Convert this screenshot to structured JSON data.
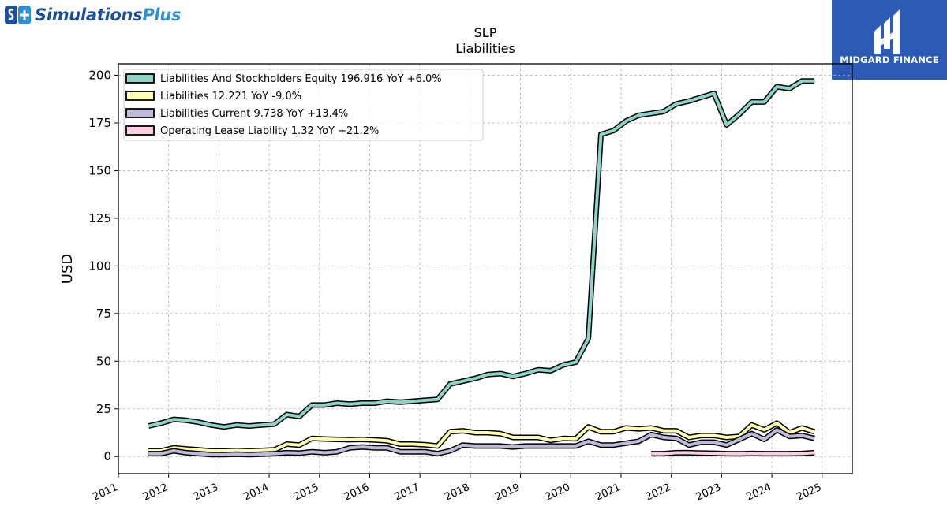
{
  "branding": {
    "logo_text_main": "Simulations",
    "logo_text_accent": "Plus",
    "brand_name": "MIDGARD FINANCE",
    "brand_color": "#2d5ab5"
  },
  "chart_data": {
    "type": "line",
    "title": "SLP",
    "subtitle": "Liabilities",
    "ylabel": "USD",
    "xlabel": "",
    "ylim": [
      -9,
      206
    ],
    "xlim": [
      2011.0,
      2025.6
    ],
    "yticks": [
      0,
      25,
      50,
      75,
      100,
      125,
      150,
      175,
      200
    ],
    "xticks": [
      {
        "pos": 2011.0,
        "label": "2011"
      },
      {
        "pos": 2012.0,
        "label": "2012"
      },
      {
        "pos": 2013.0,
        "label": "2013"
      },
      {
        "pos": 2014.0,
        "label": "2014"
      },
      {
        "pos": 2015.0,
        "label": "2015"
      },
      {
        "pos": 2016.0,
        "label": "2016"
      },
      {
        "pos": 2017.0,
        "label": "2017"
      },
      {
        "pos": 2018.0,
        "label": "2018"
      },
      {
        "pos": 2019.0,
        "label": "2019"
      },
      {
        "pos": 2020.0,
        "label": "2020"
      },
      {
        "pos": 2021.0,
        "label": "2021"
      },
      {
        "pos": 2022.0,
        "label": "2022"
      },
      {
        "pos": 2023.0,
        "label": "2023"
      },
      {
        "pos": 2024.0,
        "label": "2024"
      },
      {
        "pos": 2025.0,
        "label": "2025"
      }
    ],
    "grid": true,
    "legend_position": "top-left",
    "series": [
      {
        "name": "Liabilities And Stockholders Equity  196.916 YoY +6.0%",
        "color": "#8dd3c7",
        "points": [
          [
            2011.6,
            16
          ],
          [
            2011.85,
            17.5
          ],
          [
            2012.1,
            19.5
          ],
          [
            2012.35,
            19
          ],
          [
            2012.6,
            18
          ],
          [
            2012.85,
            16.5
          ],
          [
            2013.1,
            15.5
          ],
          [
            2013.35,
            16.5
          ],
          [
            2013.6,
            16
          ],
          [
            2013.85,
            16.5
          ],
          [
            2014.1,
            17
          ],
          [
            2014.35,
            22
          ],
          [
            2014.6,
            21
          ],
          [
            2014.85,
            27
          ],
          [
            2015.1,
            27
          ],
          [
            2015.35,
            28
          ],
          [
            2015.6,
            27.5
          ],
          [
            2015.85,
            28
          ],
          [
            2016.1,
            28
          ],
          [
            2016.35,
            29
          ],
          [
            2016.6,
            28.5
          ],
          [
            2016.85,
            29
          ],
          [
            2017.1,
            29.5
          ],
          [
            2017.35,
            30
          ],
          [
            2017.6,
            38
          ],
          [
            2017.85,
            39.5
          ],
          [
            2018.1,
            41
          ],
          [
            2018.35,
            43
          ],
          [
            2018.6,
            43.5
          ],
          [
            2018.85,
            42
          ],
          [
            2019.1,
            43.5
          ],
          [
            2019.35,
            45.5
          ],
          [
            2019.6,
            45
          ],
          [
            2019.85,
            48
          ],
          [
            2020.1,
            49.5
          ],
          [
            2020.35,
            62
          ],
          [
            2020.6,
            169
          ],
          [
            2020.85,
            171
          ],
          [
            2021.1,
            176
          ],
          [
            2021.35,
            179
          ],
          [
            2021.6,
            180
          ],
          [
            2021.85,
            181
          ],
          [
            2022.1,
            185
          ],
          [
            2022.35,
            186.5
          ],
          [
            2022.6,
            188.5
          ],
          [
            2022.85,
            190.5
          ],
          [
            2023.1,
            174
          ],
          [
            2023.35,
            179.5
          ],
          [
            2023.6,
            186
          ],
          [
            2023.85,
            186
          ],
          [
            2024.1,
            194
          ],
          [
            2024.35,
            193
          ],
          [
            2024.6,
            197
          ],
          [
            2024.85,
            197
          ]
        ]
      },
      {
        "name": "Liabilities  12.221 YoY -9.0%",
        "color": "#ffffb3",
        "points": [
          [
            2011.6,
            3
          ],
          [
            2011.85,
            3
          ],
          [
            2012.1,
            4.5
          ],
          [
            2012.35,
            4
          ],
          [
            2012.6,
            3.5
          ],
          [
            2012.85,
            3
          ],
          [
            2013.1,
            3
          ],
          [
            2013.35,
            3.2
          ],
          [
            2013.6,
            3
          ],
          [
            2013.85,
            3.2
          ],
          [
            2014.1,
            3.5
          ],
          [
            2014.35,
            6.5
          ],
          [
            2014.6,
            6
          ],
          [
            2014.85,
            9.5
          ],
          [
            2015.1,
            9.2
          ],
          [
            2015.35,
            9
          ],
          [
            2015.6,
            8.8
          ],
          [
            2015.85,
            9
          ],
          [
            2016.1,
            8.7
          ],
          [
            2016.35,
            8.3
          ],
          [
            2016.6,
            6.5
          ],
          [
            2016.85,
            6.5
          ],
          [
            2017.1,
            6.2
          ],
          [
            2017.35,
            5.5
          ],
          [
            2017.6,
            13
          ],
          [
            2017.85,
            13.5
          ],
          [
            2018.1,
            12.5
          ],
          [
            2018.35,
            12.5
          ],
          [
            2018.6,
            12
          ],
          [
            2018.85,
            10
          ],
          [
            2019.1,
            10
          ],
          [
            2019.35,
            10
          ],
          [
            2019.6,
            8.5
          ],
          [
            2019.85,
            9.5
          ],
          [
            2020.1,
            9.3
          ],
          [
            2020.35,
            15.5
          ],
          [
            2020.6,
            13
          ],
          [
            2020.85,
            13
          ],
          [
            2021.1,
            15
          ],
          [
            2021.35,
            14.5
          ],
          [
            2021.6,
            15
          ],
          [
            2021.85,
            13.5
          ],
          [
            2022.1,
            13.5
          ],
          [
            2022.35,
            10
          ],
          [
            2022.6,
            11
          ],
          [
            2022.85,
            11
          ],
          [
            2023.1,
            10
          ],
          [
            2023.35,
            10.5
          ],
          [
            2023.6,
            16.5
          ],
          [
            2023.85,
            14
          ],
          [
            2024.1,
            17.5
          ],
          [
            2024.35,
            12.5
          ],
          [
            2024.6,
            15
          ],
          [
            2024.85,
            13
          ]
        ]
      },
      {
        "name": "Liabilities Current  9.738 YoY +13.4%",
        "color": "#bebada",
        "points": [
          [
            2011.6,
            1.5
          ],
          [
            2011.85,
            1.5
          ],
          [
            2012.1,
            3
          ],
          [
            2012.35,
            2
          ],
          [
            2012.6,
            1.5
          ],
          [
            2012.85,
            1
          ],
          [
            2013.1,
            1
          ],
          [
            2013.35,
            1.2
          ],
          [
            2013.6,
            1
          ],
          [
            2013.85,
            1.2
          ],
          [
            2014.1,
            1.5
          ],
          [
            2014.35,
            2
          ],
          [
            2014.6,
            1.8
          ],
          [
            2014.85,
            2.5
          ],
          [
            2015.1,
            2
          ],
          [
            2015.35,
            2.5
          ],
          [
            2015.6,
            4.5
          ],
          [
            2015.85,
            5
          ],
          [
            2016.1,
            4.5
          ],
          [
            2016.35,
            4.5
          ],
          [
            2016.6,
            2.5
          ],
          [
            2016.85,
            2.5
          ],
          [
            2017.1,
            2.5
          ],
          [
            2017.35,
            1.5
          ],
          [
            2017.6,
            3
          ],
          [
            2017.85,
            6
          ],
          [
            2018.1,
            5.5
          ],
          [
            2018.35,
            5.5
          ],
          [
            2018.6,
            5.5
          ],
          [
            2018.85,
            5
          ],
          [
            2019.1,
            5.5
          ],
          [
            2019.35,
            5.5
          ],
          [
            2019.6,
            5.5
          ],
          [
            2019.85,
            5.5
          ],
          [
            2020.1,
            5.5
          ],
          [
            2020.35,
            8
          ],
          [
            2020.6,
            6
          ],
          [
            2020.85,
            6
          ],
          [
            2021.1,
            7
          ],
          [
            2021.35,
            8
          ],
          [
            2021.6,
            11.5
          ],
          [
            2021.85,
            10
          ],
          [
            2022.1,
            9.5
          ],
          [
            2022.35,
            6
          ],
          [
            2022.6,
            7.5
          ],
          [
            2022.85,
            7.5
          ],
          [
            2023.1,
            6
          ],
          [
            2023.35,
            9
          ],
          [
            2023.6,
            12
          ],
          [
            2023.85,
            9
          ],
          [
            2024.1,
            14
          ],
          [
            2024.35,
            10.5
          ],
          [
            2024.6,
            11
          ],
          [
            2024.85,
            9.5
          ]
        ]
      },
      {
        "name": "Operating Lease Liability  1.32 YoY +21.2%",
        "color": "#fccde5",
        "points": [
          [
            2021.6,
            1.5
          ],
          [
            2021.85,
            1.5
          ],
          [
            2022.1,
            2
          ],
          [
            2022.35,
            2
          ],
          [
            2022.6,
            1.8
          ],
          [
            2022.85,
            1.7
          ],
          [
            2023.1,
            1.5
          ],
          [
            2023.35,
            1.4
          ],
          [
            2023.6,
            1.6
          ],
          [
            2023.85,
            1.5
          ],
          [
            2024.1,
            1.5
          ],
          [
            2024.35,
            1.5
          ],
          [
            2024.6,
            1.6
          ],
          [
            2024.85,
            2
          ]
        ]
      }
    ]
  }
}
